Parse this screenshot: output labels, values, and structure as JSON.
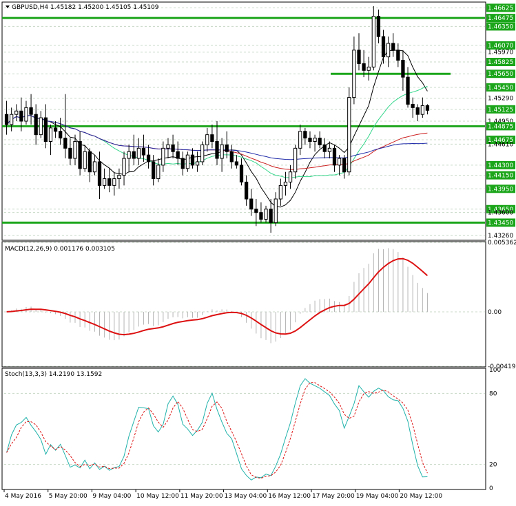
{
  "window": {
    "symbol_header": "GBPUSD,H4  1.45182 1.45200 1.45105 1.45109",
    "macd_label": "MACD(12,26,9) 0.001176 0.003105",
    "stoch_label": "Stoch(13,3,3) 14.2190 13.1592"
  },
  "chart_data": [
    {
      "type": "candlestick",
      "title": "GBPUSD,H4  1.45182 1.45200 1.45105 1.45109",
      "ylim": [
        1.432,
        1.467
      ],
      "y_ticks": [
        "1.46625",
        "1.46475",
        "1.46350",
        "1.46070",
        "1.45970",
        "1.45825",
        "1.45650",
        "1.45450",
        "1.45290",
        "1.45125",
        "1.44950",
        "1.44875",
        "1.44675",
        "1.44610",
        "1.44300",
        "1.44150",
        "1.43950",
        "1.43650",
        "1.43600",
        "1.43450",
        "1.43260"
      ],
      "highlighted_levels": [
        "1.46625",
        "1.46475",
        "1.46350",
        "1.46070",
        "1.45825",
        "1.45650",
        "1.45450",
        "1.45125",
        "1.44875",
        "1.44675",
        "1.44300",
        "1.44150",
        "1.43950",
        "1.43650",
        "1.43450"
      ],
      "horizontal_lines": [
        1.46475,
        1.4565,
        1.44875,
        1.4345
      ],
      "x_labels": [
        "4 May 2016",
        "5 May 20:00",
        "9 May 04:00",
        "10 May 12:00",
        "11 May 20:00",
        "13 May 04:00",
        "16 May 12:00",
        "17 May 20:00",
        "19 May 04:00",
        "20 May 12:00"
      ],
      "candles": [
        [
          1.4505,
          1.4525,
          1.4475,
          1.449
        ],
        [
          1.449,
          1.4515,
          1.448,
          1.4505
        ],
        [
          1.4505,
          1.452,
          1.4495,
          1.451
        ],
        [
          1.451,
          1.453,
          1.448,
          1.4495
        ],
        [
          1.4495,
          1.4525,
          1.449,
          1.4515
        ],
        [
          1.4515,
          1.4535,
          1.449,
          1.4505
        ],
        [
          1.4505,
          1.452,
          1.446,
          1.4475
        ],
        [
          1.4475,
          1.451,
          1.447,
          1.45
        ],
        [
          1.45,
          1.452,
          1.4455,
          1.4465
        ],
        [
          1.4465,
          1.449,
          1.4445,
          1.4485
        ],
        [
          1.4485,
          1.4495,
          1.447,
          1.448
        ],
        [
          1.448,
          1.45,
          1.446,
          1.447
        ],
        [
          1.447,
          1.4535,
          1.444,
          1.4455
        ],
        [
          1.4455,
          1.447,
          1.443,
          1.444
        ],
        [
          1.444,
          1.4475,
          1.443,
          1.4465
        ],
        [
          1.4465,
          1.448,
          1.4415,
          1.4425
        ],
        [
          1.4425,
          1.446,
          1.442,
          1.445
        ],
        [
          1.445,
          1.4455,
          1.4405,
          1.442
        ],
        [
          1.442,
          1.4445,
          1.4415,
          1.4435
        ],
        [
          1.4435,
          1.445,
          1.438,
          1.44
        ],
        [
          1.44,
          1.4425,
          1.4395,
          1.441
        ],
        [
          1.441,
          1.4425,
          1.439,
          1.44
        ],
        [
          1.44,
          1.442,
          1.4385,
          1.441
        ],
        [
          1.441,
          1.4425,
          1.4395,
          1.4415
        ],
        [
          1.4415,
          1.445,
          1.44,
          1.444
        ],
        [
          1.444,
          1.446,
          1.442,
          1.445
        ],
        [
          1.445,
          1.4475,
          1.443,
          1.444
        ],
        [
          1.444,
          1.447,
          1.443,
          1.4455
        ],
        [
          1.4455,
          1.4475,
          1.4435,
          1.4445
        ],
        [
          1.4445,
          1.446,
          1.4425,
          1.4435
        ],
        [
          1.4435,
          1.4445,
          1.44,
          1.441
        ],
        [
          1.441,
          1.444,
          1.4405,
          1.443
        ],
        [
          1.443,
          1.4465,
          1.442,
          1.4455
        ],
        [
          1.4455,
          1.447,
          1.444,
          1.446
        ],
        [
          1.446,
          1.4475,
          1.444,
          1.445
        ],
        [
          1.445,
          1.4465,
          1.443,
          1.444
        ],
        [
          1.444,
          1.445,
          1.4415,
          1.4425
        ],
        [
          1.4425,
          1.445,
          1.442,
          1.4445
        ],
        [
          1.4445,
          1.4455,
          1.4425,
          1.443
        ],
        [
          1.443,
          1.445,
          1.442,
          1.4435
        ],
        [
          1.4435,
          1.4465,
          1.443,
          1.446
        ],
        [
          1.446,
          1.4485,
          1.445,
          1.4475
        ],
        [
          1.4475,
          1.449,
          1.4455,
          1.4465
        ],
        [
          1.4465,
          1.4495,
          1.443,
          1.444
        ],
        [
          1.444,
          1.447,
          1.442,
          1.446
        ],
        [
          1.446,
          1.448,
          1.444,
          1.445
        ],
        [
          1.445,
          1.446,
          1.4425,
          1.4435
        ],
        [
          1.4435,
          1.4445,
          1.4425,
          1.443
        ],
        [
          1.443,
          1.444,
          1.44,
          1.4405
        ],
        [
          1.4405,
          1.4415,
          1.437,
          1.438
        ],
        [
          1.438,
          1.4395,
          1.4355,
          1.4365
        ],
        [
          1.4365,
          1.438,
          1.434,
          1.436
        ],
        [
          1.436,
          1.4375,
          1.4345,
          1.435
        ],
        [
          1.435,
          1.437,
          1.4345,
          1.4365
        ],
        [
          1.4365,
          1.438,
          1.433,
          1.4345
        ],
        [
          1.4345,
          1.439,
          1.434,
          1.438
        ],
        [
          1.438,
          1.441,
          1.437,
          1.44
        ],
        [
          1.44,
          1.442,
          1.4385,
          1.4405
        ],
        [
          1.4405,
          1.443,
          1.4395,
          1.442
        ],
        [
          1.442,
          1.446,
          1.441,
          1.4455
        ],
        [
          1.4455,
          1.449,
          1.4445,
          1.448
        ],
        [
          1.448,
          1.4485,
          1.446,
          1.447
        ],
        [
          1.447,
          1.448,
          1.4455,
          1.4465
        ],
        [
          1.4465,
          1.4475,
          1.445,
          1.447
        ],
        [
          1.447,
          1.448,
          1.4455,
          1.446
        ],
        [
          1.446,
          1.447,
          1.444,
          1.445
        ],
        [
          1.445,
          1.4465,
          1.444,
          1.4455
        ],
        [
          1.4455,
          1.446,
          1.442,
          1.443
        ],
        [
          1.443,
          1.4445,
          1.4415,
          1.444
        ],
        [
          1.444,
          1.4445,
          1.441,
          1.442
        ],
        [
          1.442,
          1.4545,
          1.4415,
          1.453
        ],
        [
          1.453,
          1.462,
          1.452,
          1.46
        ],
        [
          1.46,
          1.4625,
          1.457,
          1.458
        ],
        [
          1.458,
          1.46,
          1.456,
          1.457
        ],
        [
          1.457,
          1.459,
          1.4555,
          1.4575
        ],
        [
          1.4575,
          1.4665,
          1.457,
          1.465
        ],
        [
          1.465,
          1.466,
          1.461,
          1.462
        ],
        [
          1.462,
          1.463,
          1.458,
          1.459
        ],
        [
          1.459,
          1.462,
          1.4575,
          1.461
        ],
        [
          1.461,
          1.4625,
          1.459,
          1.46
        ],
        [
          1.46,
          1.461,
          1.4575,
          1.4585
        ],
        [
          1.4585,
          1.46,
          1.454,
          1.456
        ],
        [
          1.456,
          1.4575,
          1.4515,
          1.452
        ],
        [
          1.452,
          1.453,
          1.45,
          1.4515
        ],
        [
          1.4515,
          1.452,
          1.4495,
          1.4505
        ],
        [
          1.4505,
          1.453,
          1.45,
          1.4518
        ],
        [
          1.4518,
          1.452,
          1.4505,
          1.4511
        ]
      ]
    },
    {
      "type": "histogram+line",
      "title": "MACD(12,26,9) 0.001176 0.003105",
      "ylim": [
        -0.004199,
        0.005362
      ],
      "y_ticks": [
        "0.005362",
        "0.00",
        "-0.004199"
      ]
    },
    {
      "type": "line",
      "title": "Stoch(13,3,3) 14.2190 13.1592",
      "ylim": [
        0,
        100
      ],
      "y_ticks": [
        "100",
        "80",
        "20",
        "0"
      ]
    }
  ]
}
